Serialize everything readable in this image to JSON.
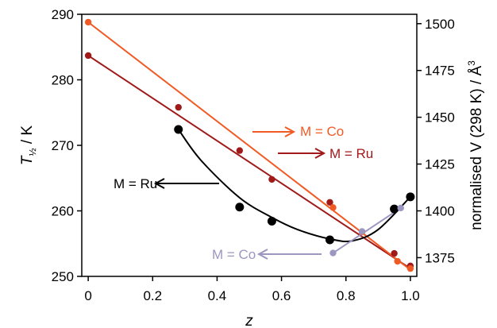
{
  "chart_data": {
    "type": "scatter",
    "x": {
      "label": "z",
      "range": [
        -0.02,
        1.02
      ],
      "ticks": [
        0,
        0.2,
        0.4,
        0.6,
        0.8,
        1.0
      ],
      "tick_labels": [
        "0",
        "0.2",
        "0.4",
        "0.6",
        "0.8",
        "1.0"
      ]
    },
    "y_left": {
      "label_main": "T",
      "label_sub": "½",
      "label_unit": " / K",
      "range": [
        250,
        290
      ],
      "ticks": [
        250,
        260,
        270,
        280,
        290
      ],
      "tick_labels": [
        "250",
        "260",
        "270",
        "280",
        "290"
      ]
    },
    "y_right": {
      "label": "normalised V (298 K) / Å",
      "label_sup": "3",
      "range": [
        1365,
        1505
      ],
      "ticks": [
        1375,
        1400,
        1425,
        1450,
        1475,
        1500
      ],
      "tick_labels": [
        "1375",
        "1400",
        "1425",
        "1450",
        "1475",
        "1500"
      ]
    },
    "series": [
      {
        "axis": "left",
        "color": "#F15A24",
        "x": [
          0,
          0.76,
          0.85,
          0.96,
          1.0
        ],
        "y": [
          288.8,
          260.5,
          256.8,
          252.3,
          251.2
        ],
        "fit": [
          [
            0,
            288.8
          ],
          [
            1.0,
            251.0
          ]
        ]
      },
      {
        "axis": "left",
        "color": "#A01A1A",
        "x": [
          0,
          0.28,
          0.47,
          0.57,
          0.75,
          0.95,
          1.0
        ],
        "y": [
          283.7,
          275.8,
          269.2,
          264.8,
          261.3,
          253.5,
          251.6
        ],
        "fit": [
          [
            0,
            283.7
          ],
          [
            1.0,
            251.2
          ]
        ]
      },
      {
        "axis": "right",
        "color": "#000000",
        "x": [
          0.28,
          0.47,
          0.57,
          0.75,
          0.95,
          1.0
        ],
        "y": [
          1443.5,
          1402,
          1394.5,
          1384.5,
          1401,
          1407.5
        ],
        "curve": [
          [
            0.28,
            1443.5
          ],
          [
            0.35,
            1427
          ],
          [
            0.47,
            1407
          ],
          [
            0.57,
            1396.5
          ],
          [
            0.65,
            1390
          ],
          [
            0.75,
            1385
          ],
          [
            0.82,
            1384
          ],
          [
            0.9,
            1390
          ],
          [
            1.0,
            1407.5
          ]
        ]
      },
      {
        "axis": "right",
        "color": "#9B97C0",
        "x": [
          0.76,
          0.85,
          0.97
        ],
        "y": [
          1377.5,
          1389,
          1401.5
        ],
        "fit": [
          [
            0.76,
            1377.5
          ],
          [
            0.97,
            1401.5
          ]
        ]
      }
    ],
    "annotations": [
      {
        "text": "M = Co",
        "color": "#F15A24",
        "arrow": "right"
      },
      {
        "text": "M = Ru",
        "color": "#A01A1A",
        "arrow": "right"
      },
      {
        "text": "M = Ru",
        "color": "#000000",
        "arrow": "left"
      },
      {
        "text": "M = Co",
        "color": "#9B97C0",
        "arrow": "left"
      }
    ]
  }
}
